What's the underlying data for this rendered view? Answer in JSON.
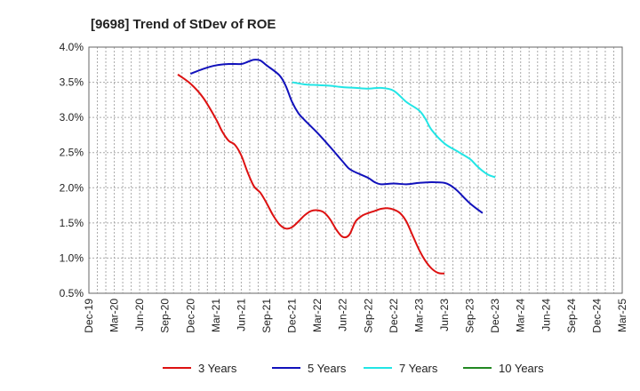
{
  "chart_data": {
    "type": "line",
    "title": "[9698]  Trend of StDev of ROE",
    "xlabel": "",
    "ylabel": "",
    "x_ticks": [
      "Dec-19",
      "Mar-20",
      "Jun-20",
      "Sep-20",
      "Dec-20",
      "Mar-21",
      "Jun-21",
      "Sep-21",
      "Dec-21",
      "Mar-22",
      "Jun-22",
      "Sep-22",
      "Dec-22",
      "Mar-23",
      "Jun-23",
      "Sep-23",
      "Dec-23",
      "Mar-24",
      "Jun-24",
      "Sep-24",
      "Dec-24",
      "Mar-25"
    ],
    "y_ticks": [
      "0.5%",
      "1.0%",
      "1.5%",
      "2.0%",
      "2.5%",
      "3.0%",
      "3.5%",
      "4.0%"
    ],
    "ylim": [
      0.5,
      4.0
    ],
    "grid": true,
    "legend_position": "bottom",
    "series": [
      {
        "name": "3 Years",
        "color": "#dd1111",
        "points": [
          [
            0,
            3.61
          ],
          [
            1,
            3.48
          ],
          [
            2,
            3.28
          ],
          [
            3,
            2.98
          ],
          [
            3.5,
            2.8
          ],
          [
            4,
            2.67
          ],
          [
            4.5,
            2.61
          ],
          [
            5,
            2.46
          ],
          [
            5.5,
            2.22
          ],
          [
            6,
            2.02
          ],
          [
            6.5,
            1.93
          ],
          [
            7,
            1.78
          ],
          [
            7.5,
            1.61
          ],
          [
            8,
            1.48
          ],
          [
            8.5,
            1.42
          ],
          [
            9,
            1.44
          ],
          [
            9.5,
            1.52
          ],
          [
            10,
            1.61
          ],
          [
            10.5,
            1.67
          ],
          [
            11,
            1.68
          ],
          [
            11.5,
            1.65
          ],
          [
            12,
            1.55
          ],
          [
            12.5,
            1.4
          ],
          [
            13,
            1.3
          ],
          [
            13.5,
            1.33
          ],
          [
            14,
            1.52
          ],
          [
            14.5,
            1.6
          ],
          [
            15,
            1.64
          ],
          [
            15.5,
            1.67
          ],
          [
            16,
            1.7
          ],
          [
            16.5,
            1.71
          ],
          [
            17,
            1.69
          ],
          [
            17.5,
            1.64
          ],
          [
            18,
            1.52
          ],
          [
            18.5,
            1.32
          ],
          [
            19,
            1.12
          ],
          [
            19.5,
            0.96
          ],
          [
            20,
            0.85
          ],
          [
            20.5,
            0.79
          ],
          [
            21,
            0.78
          ]
        ]
      },
      {
        "name": "5 Years",
        "color": "#1111bb",
        "points": [
          [
            1,
            3.62
          ],
          [
            2,
            3.69
          ],
          [
            3,
            3.74
          ],
          [
            4,
            3.76
          ],
          [
            5,
            3.76
          ],
          [
            5.5,
            3.79
          ],
          [
            6,
            3.82
          ],
          [
            6.5,
            3.81
          ],
          [
            7,
            3.74
          ],
          [
            8,
            3.6
          ],
          [
            8.5,
            3.45
          ],
          [
            9,
            3.22
          ],
          [
            9.5,
            3.06
          ],
          [
            10,
            2.96
          ],
          [
            11,
            2.78
          ],
          [
            12,
            2.58
          ],
          [
            13,
            2.37
          ],
          [
            13.5,
            2.27
          ],
          [
            14,
            2.22
          ],
          [
            15,
            2.14
          ],
          [
            15.5,
            2.08
          ],
          [
            16,
            2.05
          ],
          [
            17,
            2.06
          ],
          [
            18,
            2.05
          ],
          [
            19,
            2.07
          ],
          [
            20,
            2.08
          ],
          [
            21,
            2.07
          ],
          [
            21.5,
            2.03
          ],
          [
            22,
            1.96
          ],
          [
            23,
            1.78
          ],
          [
            24,
            1.64
          ]
        ]
      },
      {
        "name": "7 Years",
        "color": "#22e5e5",
        "points": [
          [
            9,
            3.5
          ],
          [
            10,
            3.47
          ],
          [
            11,
            3.46
          ],
          [
            12,
            3.45
          ],
          [
            13,
            3.43
          ],
          [
            14,
            3.42
          ],
          [
            15,
            3.41
          ],
          [
            16,
            3.42
          ],
          [
            17,
            3.38
          ],
          [
            18,
            3.22
          ],
          [
            19,
            3.1
          ],
          [
            19.5,
            2.98
          ],
          [
            20,
            2.82
          ],
          [
            21,
            2.63
          ],
          [
            22,
            2.52
          ],
          [
            23,
            2.41
          ],
          [
            23.5,
            2.32
          ],
          [
            24,
            2.24
          ],
          [
            24.5,
            2.18
          ],
          [
            25,
            2.15
          ]
        ]
      },
      {
        "name": "10 Years",
        "color": "#228822",
        "points": []
      }
    ]
  }
}
